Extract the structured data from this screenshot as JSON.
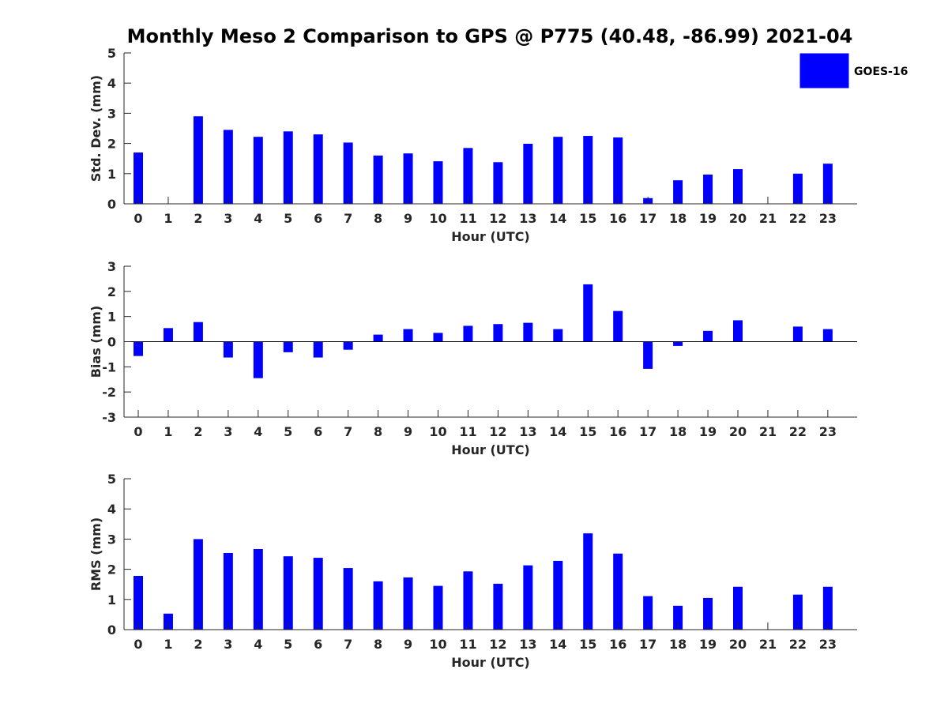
{
  "chart_data": {
    "title": "Monthly Meso 2 Comparison to GPS @ P775 (40.48, -86.99) 2021-04",
    "legend": {
      "label": "GOES-16",
      "color": "#0000ff",
      "placement": "top-right"
    },
    "bar_color": "#0000ff",
    "categories": [
      "0",
      "1",
      "2",
      "3",
      "4",
      "5",
      "6",
      "7",
      "8",
      "9",
      "10",
      "11",
      "12",
      "13",
      "14",
      "15",
      "16",
      "17",
      "18",
      "19",
      "20",
      "21",
      "22",
      "23"
    ],
    "panels": [
      {
        "type": "bar",
        "xlabel": "Hour (UTC)",
        "ylabel": "Std. Dev. (mm)",
        "ylim": [
          0,
          5
        ],
        "yticks": [
          "0",
          "1",
          "2",
          "3",
          "4",
          "5"
        ],
        "values": [
          1.7,
          null,
          2.9,
          2.45,
          2.22,
          2.4,
          2.3,
          2.03,
          1.6,
          1.67,
          1.41,
          1.85,
          1.38,
          1.99,
          2.22,
          2.25,
          2.2,
          0.19,
          0.78,
          0.97,
          1.15,
          null,
          1.0,
          1.33
        ]
      },
      {
        "type": "bar",
        "xlabel": "Hour (UTC)",
        "ylabel": "Bias (mm)",
        "ylim": [
          -3,
          3
        ],
        "yticks": [
          "-3",
          "-2",
          "-1",
          "0",
          "1",
          "2",
          "3"
        ],
        "values": [
          -0.57,
          0.54,
          0.78,
          -0.63,
          -1.45,
          -0.42,
          -0.63,
          -0.32,
          0.28,
          0.5,
          0.35,
          0.63,
          0.7,
          0.75,
          0.5,
          2.28,
          1.22,
          -1.08,
          -0.17,
          0.43,
          0.85,
          null,
          0.6,
          0.5
        ]
      },
      {
        "type": "bar",
        "xlabel": "Hour (UTC)",
        "ylabel": "RMS (mm)",
        "ylim": [
          0,
          5
        ],
        "yticks": [
          "0",
          "1",
          "2",
          "3",
          "4",
          "5"
        ],
        "values": [
          1.78,
          0.53,
          3.0,
          2.54,
          2.67,
          2.43,
          2.38,
          2.04,
          1.6,
          1.73,
          1.45,
          1.93,
          1.52,
          2.13,
          2.28,
          3.19,
          2.52,
          1.11,
          0.79,
          1.05,
          1.42,
          null,
          1.16,
          1.42
        ]
      }
    ]
  }
}
